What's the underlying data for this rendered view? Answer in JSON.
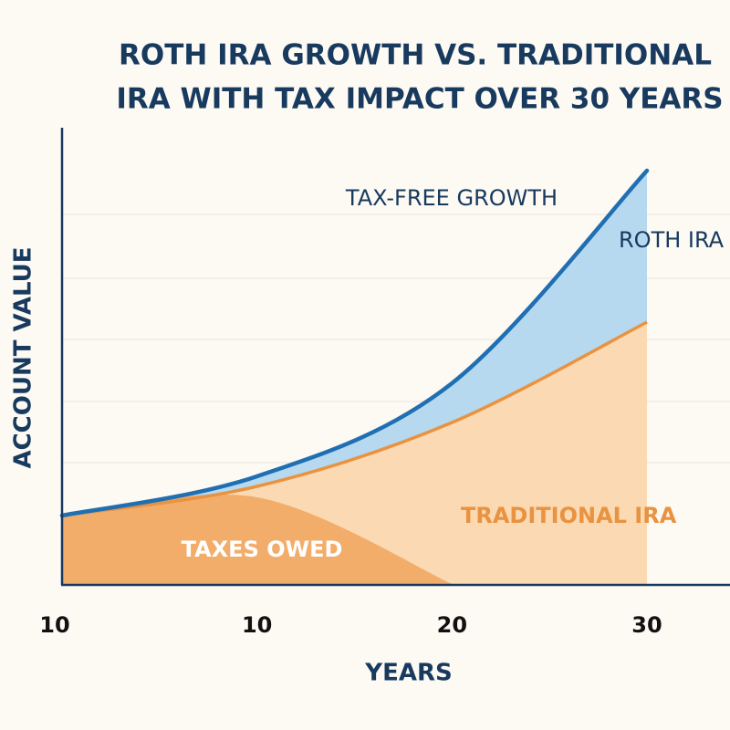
{
  "chart_data": {
    "type": "area",
    "title_lines": [
      "ROTH IRA GROWTH VS. TRADITIONAL",
      "IRA WITH TAX IMPACT OVER 30 YEARS"
    ],
    "x_label": "YEARS",
    "y_label": "ACCOUNT VALUE",
    "categories": [
      "10",
      "10",
      "20",
      "30"
    ],
    "ylim": [
      0,
      100
    ],
    "series": [
      {
        "name": "ROTH IRA",
        "color": "#1f6fb2",
        "fill": "#b7d9f0",
        "values": [
          15,
          23.6,
          44,
          90.6
        ]
      },
      {
        "name": "TRADITIONAL IRA",
        "color": "#e9923f",
        "fill": "#fbd9b3",
        "values": [
          15,
          21.4,
          35.4,
          57.4
        ]
      },
      {
        "name": "TAXES OWED",
        "color": "#f2ad6b",
        "fill": "#f2ad6b",
        "values": [
          15,
          19,
          0,
          null
        ]
      }
    ],
    "annotations": [
      "TAX-FREE GROWTH"
    ]
  }
}
